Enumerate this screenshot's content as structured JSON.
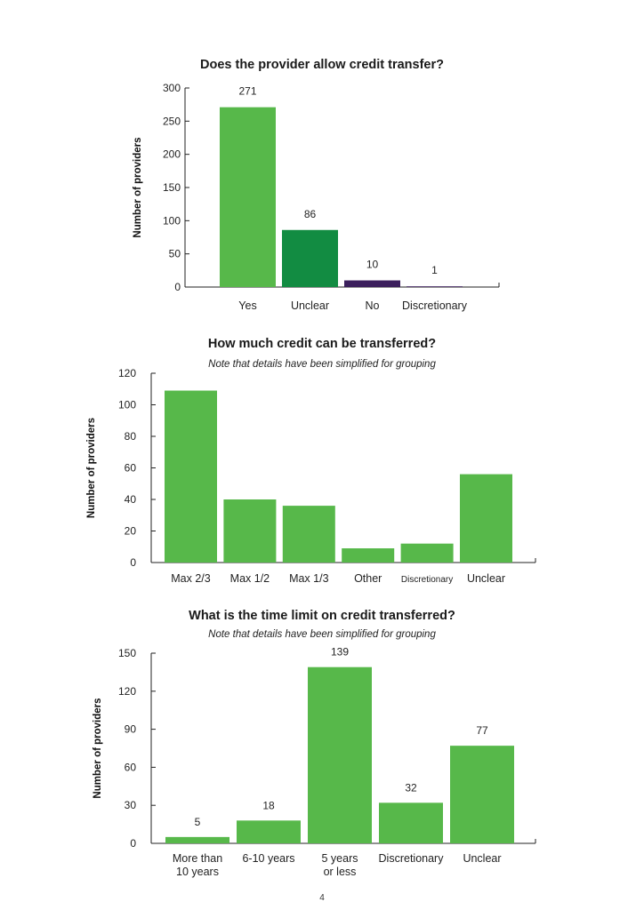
{
  "colors": {
    "green": "#57b84a",
    "dark_green": "#128c42",
    "purple": "#3b1f5c",
    "axis": "#222222"
  },
  "chart_data": [
    {
      "type": "bar",
      "title": "Does the provider allow credit transfer?",
      "note": "",
      "xlabel": "",
      "ylabel": "Number of providers",
      "categories": [
        "Yes",
        "Unclear",
        "No",
        "Discretionary"
      ],
      "values": [
        271,
        86,
        10,
        1
      ],
      "value_labels": [
        "271",
        "86",
        "10",
        "1"
      ],
      "bar_colors": [
        "green",
        "dark_green",
        "purple",
        "purple"
      ],
      "ylim": [
        0,
        300
      ],
      "yticks": [
        0,
        50,
        100,
        150,
        200,
        250,
        300
      ],
      "show_value_labels": true
    },
    {
      "type": "bar",
      "title": "How much credit can be transferred?",
      "note": "Note that details have been simplified for grouping",
      "xlabel": "",
      "ylabel": "Number of providers",
      "categories": [
        "Max 2/3",
        "Max 1/2",
        "Max 1/3",
        "Other",
        "Discretionary",
        "Unclear"
      ],
      "values": [
        109,
        40,
        36,
        9,
        12,
        56
      ],
      "value_labels": [],
      "bar_colors": [
        "green",
        "green",
        "green",
        "green",
        "green",
        "green"
      ],
      "ylim": [
        0,
        120
      ],
      "yticks": [
        0,
        20,
        40,
        60,
        80,
        100,
        120
      ],
      "show_value_labels": false
    },
    {
      "type": "bar",
      "title": "What is the time limit on credit transferred?",
      "note": "Note that details have been simplified for grouping",
      "xlabel": "",
      "ylabel": "Number of providers",
      "categories": [
        [
          "More than",
          "10 years"
        ],
        [
          "6-10 years"
        ],
        [
          "5 years",
          "or less"
        ],
        [
          "Discretionary"
        ],
        [
          "Unclear"
        ]
      ],
      "values": [
        5,
        18,
        139,
        32,
        77
      ],
      "value_labels": [
        "5",
        "18",
        "139",
        "32",
        "77"
      ],
      "bar_colors": [
        "green",
        "green",
        "green",
        "green",
        "green"
      ],
      "ylim": [
        0,
        150
      ],
      "yticks": [
        0,
        30,
        60,
        90,
        120,
        150
      ],
      "show_value_labels": true
    }
  ],
  "page_number": "4"
}
